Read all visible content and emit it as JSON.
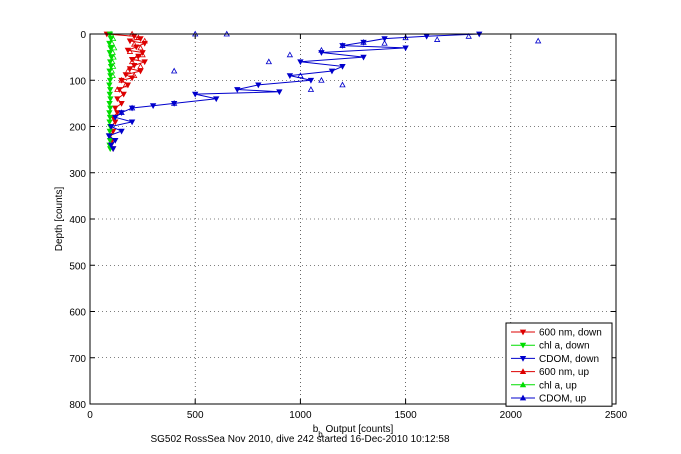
{
  "chart_data": {
    "type": "scatter",
    "xlabel": "b",
    "xlabel_sub": "b",
    "xlabel_rest": " Output [counts]",
    "ylabel": "Depth [counts]",
    "caption": "SG502 RossSea Nov 2010, dive 242 started 16-Dec-2010 10:12:58",
    "xlim": [
      0,
      2500
    ],
    "ylim": [
      800,
      0
    ],
    "y_reversed": true,
    "grid": true,
    "legend_position": "bottom-right",
    "x_ticks": [
      0,
      500,
      1000,
      1500,
      2000,
      2500
    ],
    "y_ticks": [
      0,
      100,
      200,
      300,
      400,
      500,
      600,
      700,
      800
    ],
    "series": [
      {
        "name": "600 nm, down",
        "color": "#dd0000",
        "marker": "triangle-down",
        "line": true,
        "points": [
          [
            80,
            0
          ],
          [
            210,
            5
          ],
          [
            240,
            10
          ],
          [
            190,
            15
          ],
          [
            260,
            20
          ],
          [
            220,
            28
          ],
          [
            180,
            35
          ],
          [
            250,
            40
          ],
          [
            230,
            48
          ],
          [
            200,
            55
          ],
          [
            260,
            60
          ],
          [
            210,
            68
          ],
          [
            190,
            75
          ],
          [
            240,
            80
          ],
          [
            170,
            88
          ],
          [
            200,
            95
          ],
          [
            150,
            100
          ],
          [
            180,
            110
          ],
          [
            140,
            120
          ],
          [
            160,
            130
          ],
          [
            130,
            140
          ],
          [
            150,
            150
          ],
          [
            120,
            160
          ],
          [
            130,
            170
          ],
          [
            110,
            180
          ],
          [
            120,
            190
          ],
          [
            100,
            200
          ],
          [
            110,
            210
          ],
          [
            95,
            220
          ],
          [
            105,
            230
          ],
          [
            100,
            240
          ],
          [
            110,
            248
          ]
        ]
      },
      {
        "name": "chl a, down",
        "color": "#00dd00",
        "marker": "triangle-down",
        "line": true,
        "points": [
          [
            95,
            0
          ],
          [
            100,
            10
          ],
          [
            92,
            20
          ],
          [
            98,
            30
          ],
          [
            94,
            40
          ],
          [
            102,
            50
          ],
          [
            96,
            60
          ],
          [
            100,
            70
          ],
          [
            93,
            80
          ],
          [
            97,
            90
          ],
          [
            95,
            100
          ],
          [
            92,
            110
          ],
          [
            96,
            120
          ],
          [
            94,
            130
          ],
          [
            97,
            140
          ],
          [
            93,
            150
          ],
          [
            96,
            160
          ],
          [
            92,
            170
          ],
          [
            95,
            180
          ],
          [
            93,
            190
          ],
          [
            96,
            200
          ],
          [
            94,
            210
          ],
          [
            92,
            220
          ],
          [
            95,
            230
          ],
          [
            93,
            240
          ],
          [
            96,
            248
          ]
        ]
      },
      {
        "name": "CDOM, down",
        "color": "#0000cc",
        "marker": "triangle-down",
        "line": true,
        "points": [
          [
            1850,
            0
          ],
          [
            1600,
            5
          ],
          [
            1400,
            10
          ],
          [
            1300,
            18
          ],
          [
            1200,
            25
          ],
          [
            1500,
            30
          ],
          [
            1100,
            40
          ],
          [
            1300,
            50
          ],
          [
            1000,
            60
          ],
          [
            1200,
            70
          ],
          [
            1150,
            80
          ],
          [
            950,
            90
          ],
          [
            1050,
            100
          ],
          [
            800,
            110
          ],
          [
            700,
            120
          ],
          [
            900,
            125
          ],
          [
            500,
            130
          ],
          [
            600,
            140
          ],
          [
            400,
            150
          ],
          [
            300,
            155
          ],
          [
            200,
            160
          ],
          [
            150,
            170
          ],
          [
            120,
            180
          ],
          [
            200,
            190
          ],
          [
            100,
            200
          ],
          [
            150,
            210
          ],
          [
            90,
            220
          ],
          [
            120,
            230
          ],
          [
            100,
            240
          ],
          [
            110,
            248
          ]
        ]
      },
      {
        "name": "600 nm, up",
        "color": "#dd0000",
        "marker": "triangle-up",
        "line": false,
        "points": [
          [
            200,
            0
          ],
          [
            230,
            8
          ],
          [
            260,
            15
          ],
          [
            210,
            22
          ],
          [
            240,
            30
          ],
          [
            190,
            38
          ],
          [
            250,
            45
          ],
          [
            220,
            52
          ],
          [
            200,
            60
          ],
          [
            240,
            70
          ],
          [
            180,
            80
          ],
          [
            210,
            90
          ],
          [
            150,
            100
          ],
          [
            170,
            110
          ],
          [
            130,
            120
          ]
        ]
      },
      {
        "name": "chl a, up",
        "color": "#00dd00",
        "marker": "triangle-up",
        "line": false,
        "points": [
          [
            100,
            0
          ],
          [
            110,
            10
          ],
          [
            104,
            20
          ],
          [
            115,
            30
          ],
          [
            108,
            40
          ],
          [
            112,
            50
          ],
          [
            106,
            60
          ],
          [
            110,
            70
          ],
          [
            104,
            80
          ],
          [
            108,
            90
          ]
        ]
      },
      {
        "name": "CDOM, up",
        "color": "#0000cc",
        "marker": "triangle-up",
        "line": false,
        "points": [
          [
            2130,
            15
          ],
          [
            1800,
            5
          ],
          [
            1650,
            12
          ],
          [
            1500,
            8
          ],
          [
            1400,
            20
          ],
          [
            1300,
            18
          ],
          [
            1200,
            25
          ],
          [
            1100,
            35
          ],
          [
            950,
            45
          ],
          [
            850,
            60
          ],
          [
            650,
            0
          ],
          [
            500,
            0
          ],
          [
            400,
            80
          ],
          [
            1000,
            90
          ],
          [
            1100,
            100
          ],
          [
            1200,
            110
          ],
          [
            1050,
            120
          ],
          [
            400,
            150
          ],
          [
            200,
            160
          ],
          [
            150,
            170
          ]
        ]
      }
    ]
  }
}
